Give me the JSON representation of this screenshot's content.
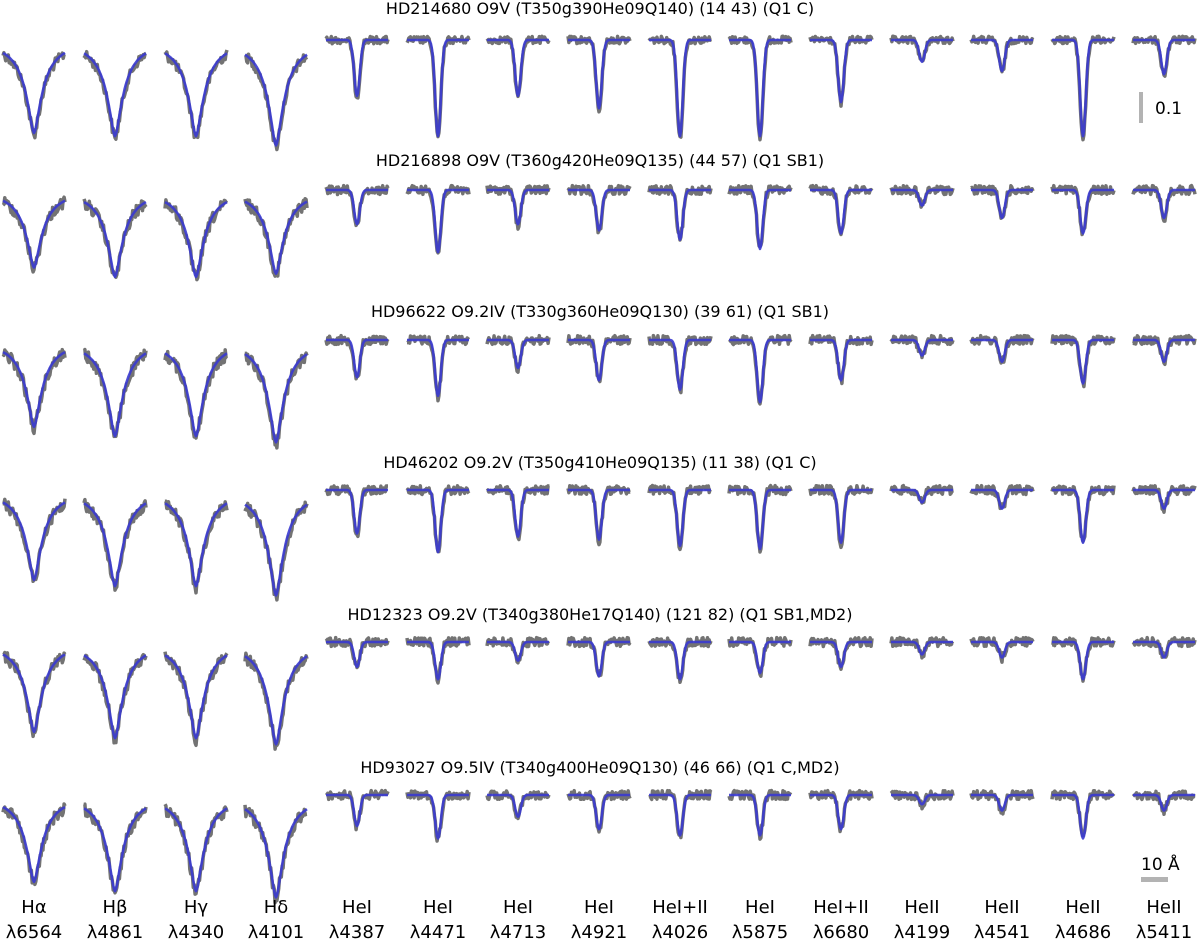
{
  "figure": {
    "scale_bar_flux": "0.1",
    "scale_bar_wavelength": "10 Å"
  },
  "chart_data": {
    "type": "line",
    "title": "",
    "xlabel": "",
    "ylabel": "",
    "legend": "none",
    "grid": false,
    "series_styles": [
      {
        "role": "observed",
        "color": "#737373"
      },
      {
        "role": "model",
        "color": "#3a3ad0"
      }
    ],
    "lines": [
      {
        "label": "Hα",
        "wavelength": "λ6564",
        "kind": "H"
      },
      {
        "label": "Hβ",
        "wavelength": "λ4861",
        "kind": "H"
      },
      {
        "label": "Hγ",
        "wavelength": "λ4340",
        "kind": "H"
      },
      {
        "label": "Hδ",
        "wavelength": "λ4101",
        "kind": "H"
      },
      {
        "label": "HeI",
        "wavelength": "λ4387",
        "kind": "He"
      },
      {
        "label": "HeI",
        "wavelength": "λ4471",
        "kind": "He"
      },
      {
        "label": "HeI",
        "wavelength": "λ4713",
        "kind": "He"
      },
      {
        "label": "HeI",
        "wavelength": "λ4921",
        "kind": "He"
      },
      {
        "label": "HeI+II",
        "wavelength": "λ4026",
        "kind": "He"
      },
      {
        "label": "HeI",
        "wavelength": "λ5875",
        "kind": "He"
      },
      {
        "label": "HeI+II",
        "wavelength": "λ6680",
        "kind": "He"
      },
      {
        "label": "HeII",
        "wavelength": "λ4199",
        "kind": "He"
      },
      {
        "label": "HeII",
        "wavelength": "λ4541",
        "kind": "He"
      },
      {
        "label": "HeII",
        "wavelength": "λ4686",
        "kind": "He"
      },
      {
        "label": "HeII",
        "wavelength": "λ5411",
        "kind": "He"
      }
    ],
    "stars": [
      {
        "title": "HD214680 O9V (T350g390He09Q140) (14 43) (Q1 C)",
        "depths": [
          0.3,
          0.31,
          0.31,
          0.34,
          0.18,
          0.31,
          0.18,
          0.22,
          0.31,
          0.31,
          0.2,
          0.07,
          0.1,
          0.31,
          0.11
        ],
        "noise": 0.01
      },
      {
        "title": "HD216898 O9V (T360g420He09Q135) (44 57) (Q1 SB1)",
        "depths": [
          0.25,
          0.28,
          0.28,
          0.27,
          0.11,
          0.2,
          0.11,
          0.13,
          0.16,
          0.19,
          0.14,
          0.05,
          0.09,
          0.14,
          0.09
        ],
        "noise": 0.012
      },
      {
        "title": "HD96622 O9.2IV (T330g360He09Q130) (39 61) (Q1 SB1)",
        "depths": [
          0.28,
          0.31,
          0.31,
          0.33,
          0.12,
          0.18,
          0.09,
          0.13,
          0.16,
          0.2,
          0.13,
          0.05,
          0.07,
          0.14,
          0.07
        ],
        "noise": 0.012
      },
      {
        "title": "HD46202 O9.2V (T350g410He09Q135) (11 38) (Q1 C)",
        "depths": [
          0.29,
          0.31,
          0.31,
          0.34,
          0.14,
          0.2,
          0.15,
          0.16,
          0.18,
          0.19,
          0.17,
          0.04,
          0.06,
          0.17,
          0.06
        ],
        "noise": 0.012
      },
      {
        "title": "HD12323 O9.2V (T340g380He17Q140) (121 82) (Q1 SB1,MD2)",
        "depths": [
          0.29,
          0.31,
          0.31,
          0.33,
          0.08,
          0.12,
          0.06,
          0.11,
          0.12,
          0.1,
          0.08,
          0.04,
          0.05,
          0.12,
          0.05
        ],
        "noise": 0.012
      },
      {
        "title": "HD93027 O9.5IV (T340g400He09Q130) (46 66) (Q1 C,MD2)",
        "depths": [
          0.28,
          0.31,
          0.31,
          0.33,
          0.1,
          0.14,
          0.07,
          0.11,
          0.13,
          0.13,
          0.11,
          0.03,
          0.05,
          0.14,
          0.05
        ],
        "noise": 0.012
      }
    ]
  }
}
